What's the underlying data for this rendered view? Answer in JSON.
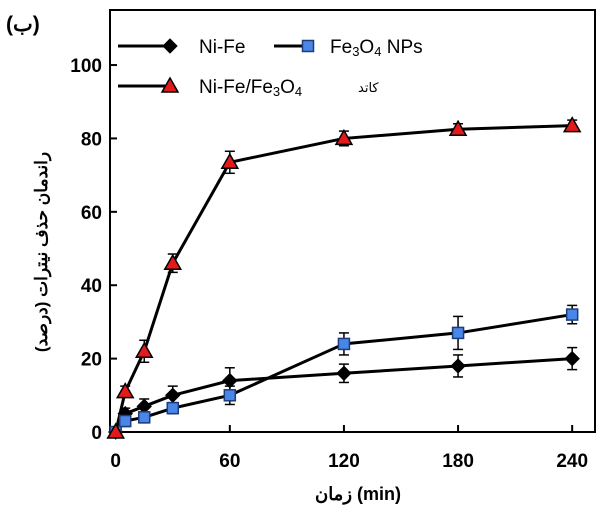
{
  "chart_data": {
    "type": "line",
    "panel_label": "(ب)",
    "xlabel_word": "زمان",
    "xlabel_unit": "(min)",
    "ylabel": "راندمان حذف نیترات (درصد)",
    "x": [
      0,
      5,
      15,
      30,
      60,
      120,
      180,
      240
    ],
    "xlim": [
      -3,
      252
    ],
    "ylim": [
      0,
      115
    ],
    "xticks": [
      0,
      60,
      120,
      180,
      240
    ],
    "yticks": [
      0,
      20,
      40,
      60,
      80,
      100
    ],
    "xtick_labels": [
      "0",
      "60",
      "120",
      "180",
      "240"
    ],
    "ytick_labels": [
      "0",
      "20",
      "40",
      "60",
      "80",
      "100"
    ],
    "grid": false,
    "legend_position": "top-left",
    "series": [
      {
        "name": "Ni-Fe",
        "marker": "diamond",
        "color": "#000000",
        "values": [
          0,
          5,
          7,
          10,
          14,
          16,
          18,
          20
        ],
        "errors": [
          1,
          1.5,
          2,
          2.5,
          3.5,
          2.5,
          3,
          3
        ]
      },
      {
        "name": "Fe3O4 NPs",
        "legend_parts": [
          "Fe",
          "3",
          "O",
          "4",
          " NPs"
        ],
        "marker": "square",
        "color": "#4a86e8",
        "values": [
          0,
          3,
          4,
          6.5,
          10,
          24,
          27,
          32
        ],
        "errors": [
          1,
          1.5,
          1.5,
          1.5,
          2.5,
          3,
          4.5,
          2.5
        ]
      },
      {
        "name": "Ni-Fe/Fe3O4 کاتد",
        "legend_parts": [
          "Ni-Fe/Fe",
          "3",
          "O",
          "4"
        ],
        "legend_suffix": "کاتد",
        "marker": "triangle",
        "color": "#e31a1c",
        "values": [
          0,
          11,
          22,
          46,
          73.5,
          80,
          82.5,
          83.5
        ],
        "errors": [
          1,
          1.5,
          3,
          2.5,
          3,
          2,
          1.5,
          1.5
        ]
      }
    ]
  }
}
